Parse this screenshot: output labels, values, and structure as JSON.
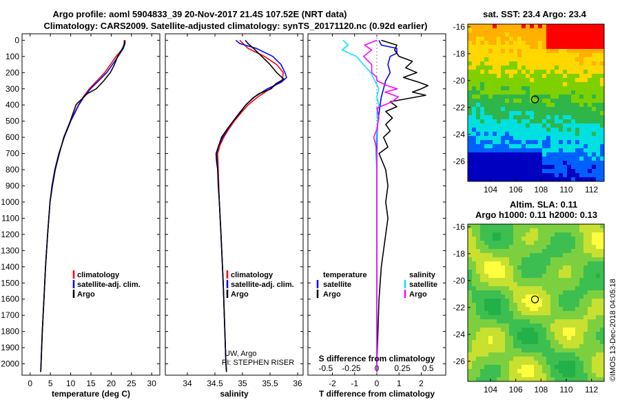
{
  "title": {
    "line1": "Argo profile: aoml 5904833_39 20-Nov-2017 21.4S 107.52E (NRT data)",
    "line2": "Climatology: CARS2009. Satellite-adjusted climatology: synTS_20171120.nc (0.92d earlier)"
  },
  "depth_ticks": [
    0,
    100,
    200,
    300,
    400,
    500,
    600,
    700,
    800,
    900,
    1000,
    1100,
    1200,
    1300,
    1400,
    1500,
    1600,
    1700,
    1800,
    1900,
    2000
  ],
  "colors": {
    "climatology": "#ff0000",
    "satellite": "#0000ff",
    "argo": "#000000",
    "sal_satellite": "#00e5ff",
    "sal_argo": "#ff00ff"
  },
  "chart_data": [
    {
      "type": "line",
      "xlabel": "temperature (deg C)",
      "xlim": [
        -2,
        32
      ],
      "ylim": [
        2070,
        -40
      ],
      "xticks": [
        0,
        5,
        10,
        15,
        20,
        25,
        30
      ],
      "legend": {
        "climatology": "climatology",
        "satellite": "satellite-adj. clim.",
        "argo": "Argo"
      },
      "series": [
        {
          "name": "climatology",
          "depth": [
            0,
            20,
            50,
            100,
            150,
            200,
            250,
            300,
            350,
            400,
            450,
            500,
            600,
            700,
            800,
            900,
            1000,
            1200,
            1400,
            1600,
            1800,
            2000,
            2050
          ],
          "values": [
            23.2,
            23.2,
            22.9,
            21.2,
            19.8,
            18.4,
            16.5,
            14.6,
            13.1,
            11.9,
            10.9,
            10.0,
            8.4,
            7.1,
            6.1,
            5.4,
            4.9,
            4.3,
            3.8,
            3.4,
            3.0,
            2.7,
            2.6
          ]
        },
        {
          "name": "satellite",
          "depth": [
            0,
            20,
            50,
            100,
            150,
            200,
            250,
            300,
            350,
            400,
            450,
            500,
            600,
            700,
            800,
            900,
            1000,
            1200,
            1400,
            1600,
            1800,
            2000,
            2050
          ],
          "values": [
            23.4,
            23.4,
            23.0,
            21.7,
            20.3,
            18.9,
            16.9,
            14.9,
            13.3,
            12.0,
            11.0,
            10.0,
            8.4,
            7.1,
            6.1,
            5.4,
            4.9,
            4.3,
            3.8,
            3.4,
            3.0,
            2.7,
            2.6
          ]
        },
        {
          "name": "Argo",
          "depth": [
            0,
            20,
            50,
            100,
            150,
            200,
            250,
            300,
            330,
            360,
            390,
            400,
            450,
            500,
            600,
            700,
            800,
            900,
            1000,
            1200,
            1400,
            1600,
            1800,
            2000,
            2050
          ],
          "values": [
            23.4,
            23.3,
            22.8,
            21.6,
            20.8,
            19.8,
            18.2,
            16.3,
            14.1,
            12.9,
            11.6,
            11.3,
            10.6,
            9.9,
            8.3,
            7.2,
            6.2,
            5.5,
            4.9,
            4.3,
            3.8,
            3.4,
            3.0,
            2.7,
            2.6
          ]
        }
      ]
    },
    {
      "type": "line",
      "xlabel": "salinity",
      "xlim": [
        33.6,
        36.1
      ],
      "ylim": [
        2070,
        -40
      ],
      "xticks": [
        34,
        34.5,
        35,
        35.5,
        36
      ],
      "legend": {
        "climatology": "climatology",
        "satellite": "satellite-adj. clim.",
        "argo": "Argo"
      },
      "credit": {
        "line1": "UW, Argo",
        "line2": "PI: STEPHEN RISER"
      },
      "series": [
        {
          "name": "climatology",
          "depth": [
            0,
            50,
            100,
            150,
            200,
            250,
            300,
            350,
            400,
            450,
            500,
            550,
            600,
            650,
            700,
            800,
            1000,
            1200,
            1500,
            1800,
            2000,
            2050
          ],
          "values": [
            34.95,
            35.1,
            35.4,
            35.62,
            35.74,
            35.72,
            35.5,
            35.28,
            35.1,
            34.97,
            34.85,
            34.75,
            34.66,
            34.59,
            34.55,
            34.56,
            34.58,
            34.61,
            34.65,
            34.68,
            34.7,
            34.71
          ]
        },
        {
          "name": "satellite",
          "depth": [
            0,
            20,
            50,
            100,
            150,
            200,
            230,
            260,
            300,
            350,
            400,
            450,
            500,
            550,
            600,
            650,
            700,
            800,
            1000,
            1200,
            1500,
            1800,
            2000,
            2050
          ],
          "values": [
            34.88,
            34.95,
            35.25,
            35.55,
            35.7,
            35.77,
            35.8,
            35.7,
            35.45,
            35.22,
            35.06,
            34.94,
            34.83,
            34.73,
            34.64,
            34.57,
            34.53,
            34.55,
            34.58,
            34.61,
            34.65,
            34.68,
            34.7,
            34.71
          ]
        },
        {
          "name": "Argo",
          "depth": [
            0,
            20,
            50,
            100,
            150,
            200,
            240,
            270,
            300,
            330,
            360,
            400,
            450,
            500,
            550,
            600,
            650,
            700,
            750,
            800,
            900,
            1000,
            1200,
            1500,
            1800,
            2000,
            2050
          ],
          "values": [
            35.05,
            35.1,
            35.2,
            35.35,
            35.5,
            35.62,
            35.75,
            35.6,
            35.52,
            35.3,
            35.18,
            35.06,
            34.95,
            34.83,
            34.72,
            34.62,
            34.57,
            34.52,
            34.53,
            34.55,
            34.56,
            34.58,
            34.61,
            34.65,
            34.68,
            34.7,
            34.71
          ]
        }
      ]
    },
    {
      "type": "line",
      "xlabel": "T difference from climatology",
      "xlabel_top": "S difference from climatology",
      "xlim": [
        -3.1,
        3.1
      ],
      "ylim": [
        2070,
        -40
      ],
      "xticks": [
        -2,
        -1,
        0,
        1,
        2
      ],
      "xticks_top": [
        {
          "value": -0.5,
          "label": "-0.5"
        },
        {
          "value": -0.25,
          "label": "-0.25"
        },
        {
          "value": 0,
          "label": "0"
        },
        {
          "value": 0.25,
          "label": "0.25"
        },
        {
          "value": 0.5,
          "label": "0.5"
        }
      ],
      "legend": {
        "temperature": "temperature",
        "satellite": "satellite",
        "argo": "Argo",
        "salinity": "salinity",
        "sal_satellite": "satellite",
        "sal_argo": "Argo"
      },
      "series": [
        {
          "name": "T satellite",
          "depth": [
            0,
            30,
            50,
            80,
            100,
            150,
            200,
            250,
            300,
            350,
            400,
            500,
            600,
            700,
            800,
            1000,
            1500,
            2000,
            2050
          ],
          "values": [
            0.1,
            0.2,
            0.9,
            0.9,
            0.6,
            0.5,
            0.6,
            0.4,
            0.3,
            0.2,
            0.15,
            0.05,
            0.0,
            0.0,
            0.0,
            0.0,
            0.0,
            0.0,
            0.0
          ]
        },
        {
          "name": "T Argo",
          "depth": [
            0,
            30,
            60,
            100,
            130,
            170,
            200,
            230,
            260,
            280,
            300,
            320,
            340,
            350,
            380,
            410,
            440,
            480,
            520,
            560,
            600,
            660,
            700,
            800,
            900,
            1000,
            1100,
            1200,
            1300,
            1400,
            1600,
            1800,
            2000,
            2050
          ],
          "values": [
            0.2,
            0.9,
            0.8,
            1.0,
            1.6,
            1.3,
            1.8,
            1.2,
            1.9,
            2.3,
            2.0,
            1.6,
            2.2,
            1.8,
            0.6,
            0.9,
            0.4,
            0.7,
            0.4,
            0.6,
            0.3,
            0.5,
            0.1,
            0.4,
            0.5,
            0.4,
            0.5,
            0.4,
            0.3,
            0.2,
            0.1,
            0.05,
            0.0,
            0.0
          ]
        },
        {
          "name": "S satellite",
          "depth": [
            0,
            30,
            60,
            100,
            150,
            200,
            250,
            300,
            350,
            400,
            450,
            500,
            600,
            700,
            800,
            1000,
            1500,
            2000,
            2050
          ],
          "values": [
            -0.33,
            -0.28,
            -0.34,
            -0.2,
            -0.13,
            -0.06,
            -0.02,
            0.02,
            0.0,
            0.02,
            0.0,
            0.01,
            -0.005,
            -0.01,
            0.0,
            0.0,
            0.0,
            0.0,
            0.0
          ]
        },
        {
          "name": "S Argo",
          "depth": [
            0,
            30,
            60,
            100,
            150,
            200,
            230,
            250,
            280,
            300,
            320,
            350,
            380,
            420,
            480,
            550,
            600,
            650,
            700,
            800,
            1000,
            1500,
            2000,
            2050
          ],
          "values": [
            0.0,
            -0.12,
            -0.05,
            -0.13,
            -0.05,
            -0.05,
            0.0,
            0.0,
            0.1,
            0.2,
            0.08,
            0.21,
            0.15,
            0.0,
            0.02,
            0.0,
            -0.03,
            -0.01,
            0.0,
            0.0,
            0.0,
            0.0,
            0.0,
            0.0
          ]
        }
      ]
    },
    {
      "type": "heatmap",
      "title": "sat. SST: 23.4 Argo: 23.4",
      "xticks": [
        104,
        106,
        108,
        110,
        112
      ],
      "yticks": [
        -16,
        -18,
        -20,
        -22,
        -24,
        -26
      ],
      "xlim": [
        102.2,
        113.0
      ],
      "ylim": [
        -27.5,
        -15.8
      ],
      "argo_position": [
        107.52,
        -21.4
      ],
      "palette": [
        "#ff0000",
        "#ffb000",
        "#ffd800",
        "#7fd000",
        "#2fb64a",
        "#00e0e0",
        "#0060ff",
        "#0000c0"
      ]
    },
    {
      "type": "heatmap",
      "title_line1": "Altim. SLA: 0.11",
      "title_line2": "Argo h1000: 0.11 h2000: 0.13",
      "xticks": [
        104,
        106,
        108,
        110,
        112
      ],
      "yticks": [
        -16,
        -18,
        -20,
        -22,
        -24,
        -26
      ],
      "xlim": [
        102.2,
        113.0
      ],
      "ylim": [
        -27.5,
        -15.8
      ],
      "argo_position": [
        107.52,
        -21.4
      ],
      "palette": [
        "#ffff40",
        "#c8e030",
        "#7cd040",
        "#3cbf50",
        "#24b048",
        "#00e5ff"
      ]
    }
  ],
  "credit": "©IMOS 13-Dec-2018 04:05:18"
}
